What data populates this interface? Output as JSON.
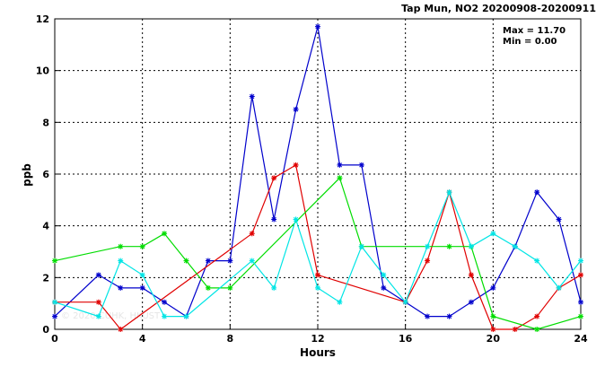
{
  "chart_data": {
    "type": "line",
    "title": "Tap Mun, NO2 20200908-20200911",
    "xlabel": "Hours",
    "ylabel": "ppb",
    "xlim": [
      0,
      24
    ],
    "ylim": [
      0,
      12
    ],
    "xticks": [
      "0",
      "4",
      "8",
      "12",
      "16",
      "20",
      "24"
    ],
    "yticks": [
      "0",
      "2",
      "4",
      "6",
      "8",
      "10",
      "12"
    ],
    "grid": true,
    "stats": {
      "max": "Max = 11.70",
      "min": "Min =  0.00"
    },
    "watermark": "© 2020 CUHK, HKUST",
    "series": [
      {
        "color": "#0000cc",
        "x": [
          0,
          2,
          3,
          4,
          5,
          6,
          7,
          8,
          9,
          10,
          11,
          12,
          13,
          14,
          15,
          16,
          17,
          18,
          19,
          20,
          21,
          22,
          23,
          24
        ],
        "y": [
          0.5,
          2.1,
          1.6,
          1.6,
          1.05,
          0.5,
          2.65,
          2.65,
          9.0,
          4.25,
          8.5,
          11.7,
          6.35,
          6.35,
          1.6,
          1.05,
          0.5,
          0.5,
          1.05,
          1.6,
          3.2,
          5.3,
          4.25,
          1.05
        ]
      },
      {
        "color": "#e00000",
        "x": [
          0,
          2,
          3,
          9,
          10,
          11,
          12,
          16,
          17,
          18,
          19,
          20,
          21,
          22,
          23,
          24
        ],
        "y": [
          1.05,
          1.05,
          0.0,
          3.7,
          5.85,
          6.35,
          2.1,
          1.05,
          2.65,
          5.3,
          2.1,
          0.0,
          0.0,
          0.5,
          1.6,
          2.1
        ]
      },
      {
        "color": "#00dd00",
        "x": [
          0,
          3,
          4,
          5,
          6,
          7,
          8,
          13,
          14,
          18,
          19,
          20,
          22,
          24
        ],
        "y": [
          2.65,
          3.2,
          3.2,
          3.7,
          2.65,
          1.6,
          1.6,
          5.85,
          3.2,
          3.2,
          3.2,
          0.5,
          0.0,
          0.5
        ]
      },
      {
        "color": "#00e5e5",
        "x": [
          0,
          2,
          3,
          4,
          5,
          6,
          9,
          10,
          11,
          12,
          13,
          14,
          15,
          16,
          17,
          18,
          19,
          20,
          21,
          22,
          23,
          24
        ],
        "y": [
          1.05,
          0.5,
          2.65,
          2.1,
          0.5,
          0.5,
          2.65,
          1.6,
          4.25,
          1.6,
          1.05,
          3.2,
          2.1,
          1.05,
          3.2,
          5.3,
          3.2,
          3.7,
          3.2,
          2.65,
          1.6,
          2.65
        ]
      }
    ]
  }
}
